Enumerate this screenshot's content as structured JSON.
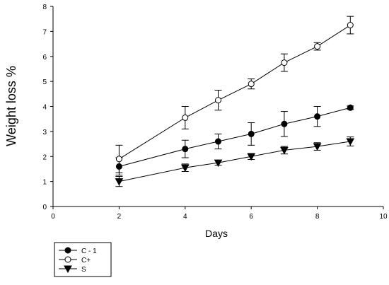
{
  "chart_data": {
    "type": "line",
    "title": "",
    "xlabel": "Days",
    "ylabel": "Weight loss %",
    "xlim": [
      0,
      10
    ],
    "ylim": [
      0,
      8
    ],
    "x_ticks": [
      0,
      2,
      4,
      6,
      8,
      10
    ],
    "y_ticks": [
      0,
      1,
      2,
      3,
      4,
      5,
      6,
      7,
      8
    ],
    "grid": false,
    "legend_position": "bottom-left outside plot",
    "series": [
      {
        "name": "C - 1",
        "marker": "filled-circle",
        "x": [
          2,
          4,
          5,
          6,
          7,
          8,
          9
        ],
        "values": [
          1.6,
          2.3,
          2.6,
          2.9,
          3.3,
          3.6,
          3.95
        ],
        "error": [
          0.35,
          0.35,
          0.3,
          0.45,
          0.5,
          0.4,
          0.07
        ]
      },
      {
        "name": "C+",
        "marker": "open-circle",
        "x": [
          2,
          4,
          5,
          6,
          7,
          8,
          9
        ],
        "values": [
          1.9,
          3.55,
          4.25,
          4.9,
          5.75,
          6.4,
          7.25
        ],
        "error": [
          0.55,
          0.45,
          0.4,
          0.2,
          0.35,
          0.15,
          0.35
        ]
      },
      {
        "name": "S",
        "marker": "filled-triangle-down",
        "x": [
          2,
          4,
          5,
          6,
          7,
          8,
          9
        ],
        "values": [
          1.0,
          1.55,
          1.75,
          2.0,
          2.25,
          2.4,
          2.6
        ],
        "error": [
          0.2,
          0.15,
          0.1,
          0.12,
          0.15,
          0.15,
          0.18
        ]
      }
    ]
  }
}
